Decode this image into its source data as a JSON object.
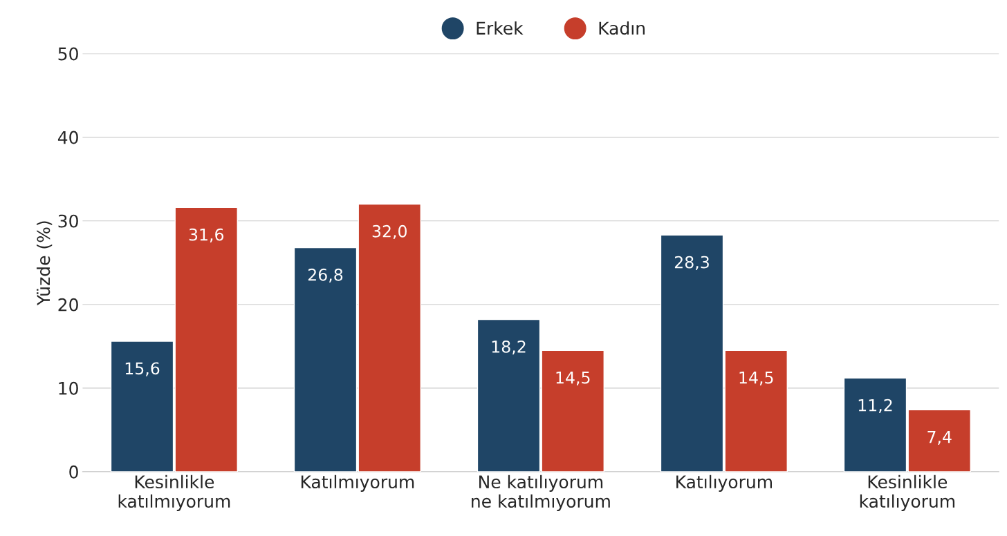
{
  "chart_data": {
    "type": "bar",
    "ylabel": "Yüzde (%)",
    "categories": [
      "Kesinlikle\nkatılmıyorum",
      "Katılmıyorum",
      "Ne katılıyorum\nne katılmıyorum",
      "Katılıyorum",
      "Kesinlikle\nkatılıyorum"
    ],
    "series": [
      {
        "name": "Erkek",
        "color": "#1f4566",
        "values": [
          15.6,
          26.8,
          18.2,
          28.3,
          11.2
        ],
        "value_labels": [
          "15,6",
          "26,8",
          "18,2",
          "28,3",
          "11,2"
        ]
      },
      {
        "name": "Kadın",
        "color": "#c63e2b",
        "values": [
          31.6,
          32.0,
          14.5,
          14.5,
          7.4
        ],
        "value_labels": [
          "31,6",
          "32,0",
          "14,5",
          "14,5",
          "7,4"
        ]
      }
    ],
    "ylim": [
      0,
      50
    ],
    "yticks": [
      0,
      10,
      20,
      30,
      40,
      50
    ],
    "grid": "y",
    "legend": "top"
  }
}
